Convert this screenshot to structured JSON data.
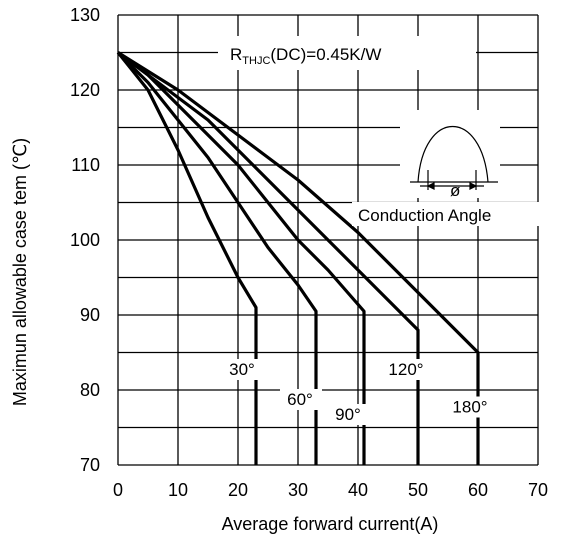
{
  "chart_data": {
    "type": "line",
    "xlabel": "Average forward current(A)",
    "ylabel": "Maximun allowable case tem (℃)",
    "xlim": [
      0,
      70
    ],
    "ylim": [
      70,
      130
    ],
    "xticks": [
      "0",
      "10",
      "20",
      "30",
      "40",
      "50",
      "60",
      "70"
    ],
    "yticks": [
      "70",
      "80",
      "90",
      "100",
      "110",
      "120",
      "130"
    ],
    "grid": true,
    "annotation": {
      "rth_prefix": "R",
      "rth_sub": "THJC",
      "rth_suffix": "(DC)=0.45K/W",
      "waveform_symbol": "ø",
      "waveform_caption": "Conduction Angle"
    },
    "series": [
      {
        "name": "30°",
        "x": [
          0,
          5,
          10,
          15,
          20,
          23
        ],
        "y": [
          125,
          120,
          112,
          103,
          95,
          91
        ],
        "max_current": 23
      },
      {
        "name": "60°",
        "x": [
          0,
          5,
          10,
          15,
          20,
          25,
          30,
          33
        ],
        "y": [
          125,
          121,
          116,
          111,
          105,
          99,
          94,
          90.5
        ],
        "max_current": 33
      },
      {
        "name": "90°",
        "x": [
          0,
          5,
          10,
          15,
          20,
          25,
          30,
          35,
          41
        ],
        "y": [
          125,
          122,
          118,
          114,
          110,
          105,
          100,
          96,
          90.5
        ],
        "max_current": 41
      },
      {
        "name": "120°",
        "x": [
          0,
          5,
          10,
          15,
          20,
          25,
          30,
          35,
          40,
          45,
          50
        ],
        "y": [
          125,
          122,
          119,
          116,
          112,
          108,
          104,
          100,
          96,
          92,
          88
        ],
        "max_current": 50
      },
      {
        "name": "180°",
        "x": [
          0,
          5,
          10,
          15,
          20,
          25,
          30,
          35,
          40,
          45,
          50,
          55,
          60
        ],
        "y": [
          125,
          122.5,
          120,
          117,
          114,
          111,
          108,
          104.5,
          101,
          97,
          93,
          89,
          85
        ],
        "max_current": 60
      }
    ]
  }
}
